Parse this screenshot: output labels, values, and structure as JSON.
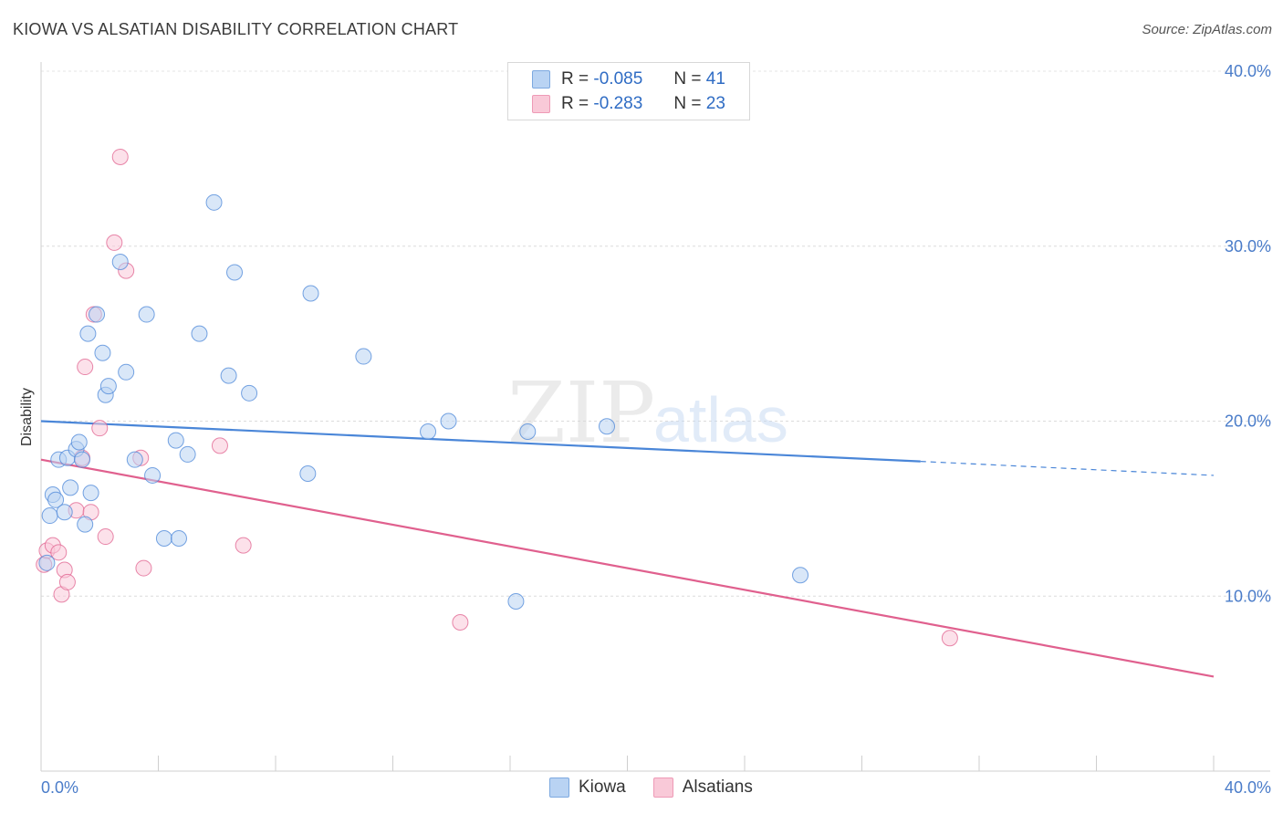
{
  "header": {
    "title": "KIOWA VS ALSATIAN DISABILITY CORRELATION CHART",
    "source": "Source: ZipAtlas.com"
  },
  "watermark": {
    "zip": "ZIP",
    "atlas": "atlas"
  },
  "legend": {
    "r_label": "R =",
    "n_label": "N =",
    "rows": [
      {
        "r": "-0.085",
        "n": "41",
        "color": "#b9d3f3"
      },
      {
        "r": "-0.283",
        "n": "23",
        "color": "#f9c9d8"
      }
    ]
  },
  "bottom_legend": {
    "kiowa": "Kiowa",
    "alsatians": "Alsatians"
  },
  "chart_data": {
    "type": "scatter",
    "title": "KIOWA VS ALSATIAN DISABILITY CORRELATION CHART",
    "xlabel": "",
    "ylabel": "Disability",
    "xlim": [
      0,
      40
    ],
    "ylim": [
      0,
      40
    ],
    "x_tick_labels": [
      "0.0%",
      "40.0%"
    ],
    "y_ticks": [
      10,
      20,
      30,
      40
    ],
    "y_tick_labels": [
      "10.0%",
      "20.0%",
      "30.0%",
      "40.0%"
    ],
    "grid": true,
    "series": [
      {
        "name": "Kiowa",
        "color": "#4a86d8",
        "fill": "#b9d3f3",
        "r": -0.085,
        "n": 41,
        "trend": {
          "x0": 0,
          "y0": 20.0,
          "x1": 30,
          "y1": 17.7,
          "dashed_to_x": 40,
          "dashed_to_y": 16.9
        },
        "points": [
          [
            0.2,
            11.9
          ],
          [
            0.3,
            14.6
          ],
          [
            0.4,
            15.8
          ],
          [
            0.5,
            15.5
          ],
          [
            0.6,
            17.8
          ],
          [
            0.8,
            14.8
          ],
          [
            0.9,
            17.9
          ],
          [
            1.0,
            16.2
          ],
          [
            1.2,
            18.4
          ],
          [
            1.3,
            18.8
          ],
          [
            1.4,
            17.8
          ],
          [
            1.5,
            14.1
          ],
          [
            1.6,
            25.0
          ],
          [
            1.7,
            15.9
          ],
          [
            1.9,
            26.1
          ],
          [
            2.1,
            23.9
          ],
          [
            2.2,
            21.5
          ],
          [
            2.3,
            22.0
          ],
          [
            2.9,
            22.8
          ],
          [
            2.7,
            29.1
          ],
          [
            3.2,
            17.8
          ],
          [
            3.6,
            26.1
          ],
          [
            3.8,
            16.9
          ],
          [
            4.2,
            13.3
          ],
          [
            4.6,
            18.9
          ],
          [
            4.7,
            13.3
          ],
          [
            5.0,
            18.1
          ],
          [
            5.4,
            25.0
          ],
          [
            5.9,
            32.5
          ],
          [
            6.4,
            22.6
          ],
          [
            6.6,
            28.5
          ],
          [
            7.1,
            21.6
          ],
          [
            9.1,
            17.0
          ],
          [
            9.2,
            27.3
          ],
          [
            11.0,
            23.7
          ],
          [
            13.2,
            19.4
          ],
          [
            13.9,
            20.0
          ],
          [
            16.2,
            9.7
          ],
          [
            16.6,
            19.4
          ],
          [
            19.3,
            19.7
          ],
          [
            25.9,
            11.2
          ]
        ]
      },
      {
        "name": "Alsatians",
        "color": "#e0608e",
        "fill": "#f9c9d8",
        "r": -0.283,
        "n": 23,
        "trend": {
          "x0": 0,
          "y0": 17.8,
          "x1": 40,
          "y1": 5.4
        },
        "points": [
          [
            0.1,
            11.8
          ],
          [
            0.2,
            12.6
          ],
          [
            0.4,
            12.9
          ],
          [
            0.6,
            12.5
          ],
          [
            0.7,
            10.1
          ],
          [
            0.8,
            11.5
          ],
          [
            0.9,
            10.8
          ],
          [
            1.2,
            14.9
          ],
          [
            1.4,
            17.9
          ],
          [
            1.5,
            23.1
          ],
          [
            1.7,
            14.8
          ],
          [
            1.8,
            26.1
          ],
          [
            2.0,
            19.6
          ],
          [
            2.2,
            13.4
          ],
          [
            2.5,
            30.2
          ],
          [
            2.7,
            35.1
          ],
          [
            2.9,
            28.6
          ],
          [
            3.4,
            17.9
          ],
          [
            3.5,
            11.6
          ],
          [
            6.1,
            18.6
          ],
          [
            6.9,
            12.9
          ],
          [
            14.3,
            8.5
          ],
          [
            31.0,
            7.6
          ]
        ]
      }
    ]
  }
}
